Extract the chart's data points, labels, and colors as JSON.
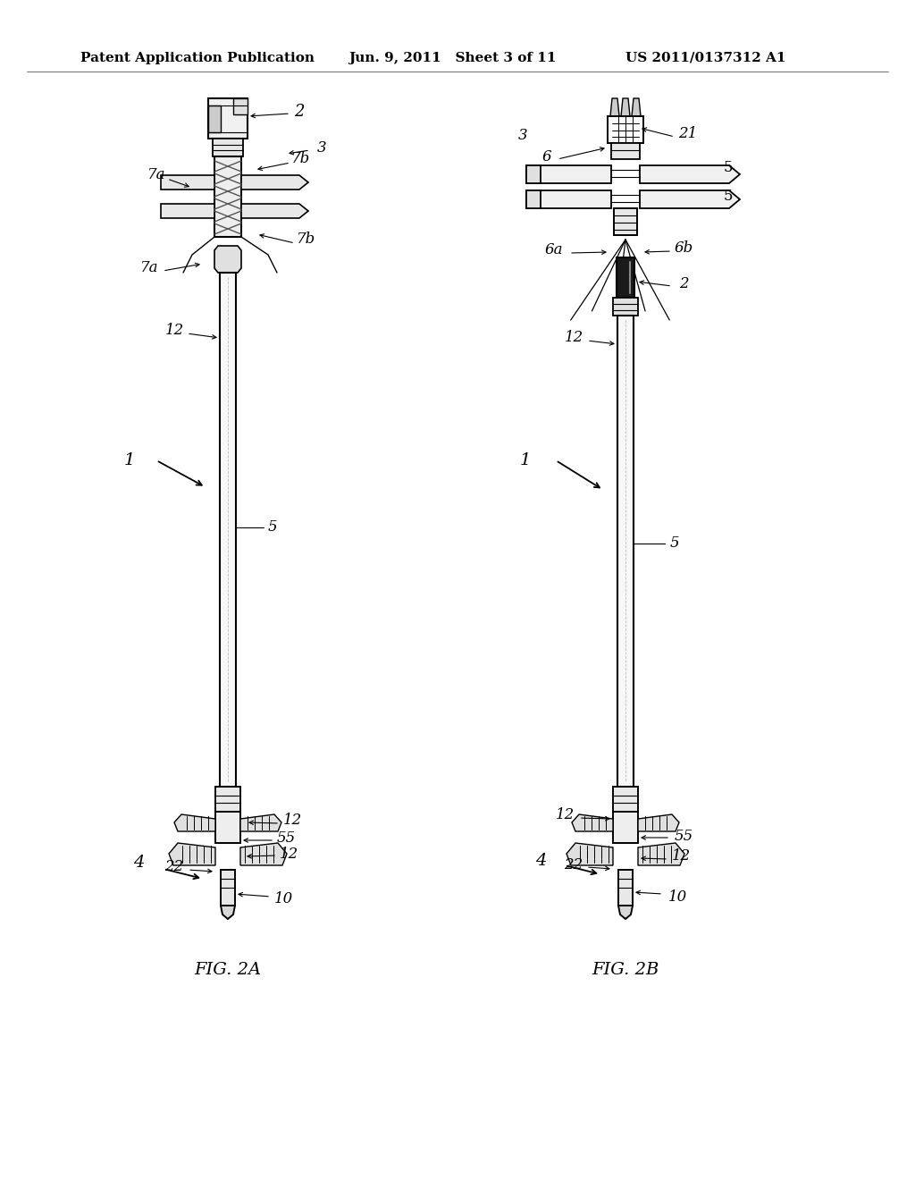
{
  "background_color": "#ffffff",
  "header_left": "Patent Application Publication",
  "header_center": "Jun. 9, 2011   Sheet 3 of 11",
  "header_right": "US 2011/0137312 A1",
  "fig2a_label": "FIG. 2A",
  "fig2b_label": "FIG. 2B",
  "header_fontsize": 11,
  "fig_label_fontsize": 14
}
